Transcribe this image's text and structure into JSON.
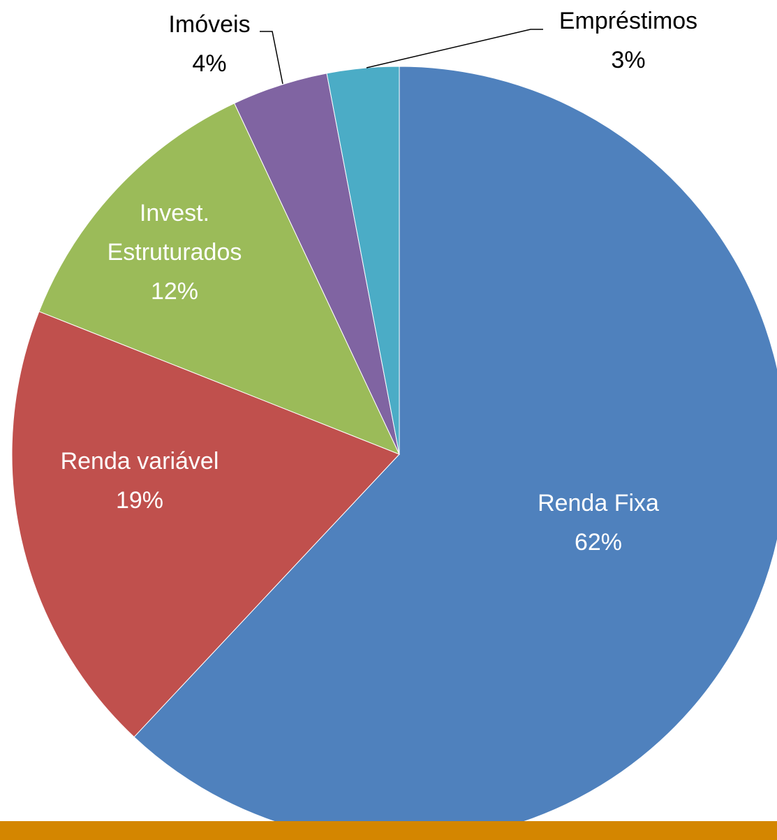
{
  "chart_data": {
    "type": "pie",
    "categories": [
      [
        "Renda Fixa"
      ],
      [
        "Renda variável"
      ],
      [
        "Invest.",
        "Estruturados"
      ],
      [
        "Imóveis"
      ],
      [
        "Empréstimos"
      ]
    ],
    "values": [
      62,
      19,
      12,
      4,
      3
    ],
    "value_labels": [
      "62%",
      "19%",
      "12%",
      "4%",
      "3%"
    ],
    "colors": [
      "#4f81bd",
      "#c0504d",
      "#9bbb59",
      "#8064a2",
      "#4bacc6"
    ]
  }
}
